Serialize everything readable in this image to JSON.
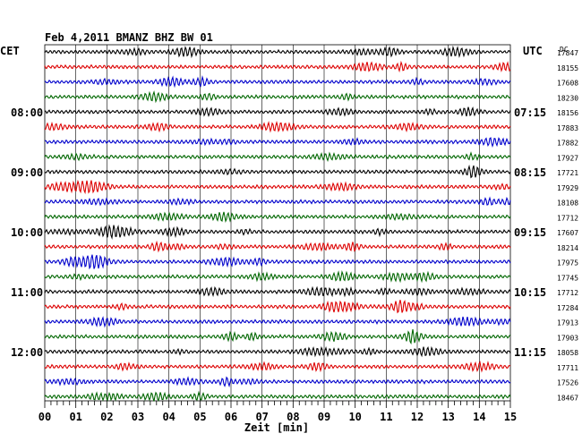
{
  "chart_data": {
    "type": "line",
    "title": "Feb 4,2011   BMANZ BHZ BW 01",
    "xlabel": "Zeit [min]",
    "left_axis_label": "CET",
    "right_axis_label": "UTC",
    "counts_label": "DC",
    "xlim": [
      0,
      15
    ],
    "x_ticks": [
      "00",
      "01",
      "02",
      "03",
      "04",
      "05",
      "06",
      "07",
      "08",
      "09",
      "10",
      "11",
      "12",
      "13",
      "14",
      "15"
    ],
    "trace_colors": [
      "#000000",
      "#dd0000",
      "#0000cc",
      "#006600"
    ],
    "left_time_labels": [
      {
        "trace": 4,
        "label": "08:00"
      },
      {
        "trace": 8,
        "label": "09:00"
      },
      {
        "trace": 12,
        "label": "10:00"
      },
      {
        "trace": 16,
        "label": "11:00"
      },
      {
        "trace": 20,
        "label": "12:00"
      }
    ],
    "right_time_labels": [
      {
        "trace": 4,
        "label": "07:15"
      },
      {
        "trace": 8,
        "label": "08:15"
      },
      {
        "trace": 12,
        "label": "09:15"
      },
      {
        "trace": 16,
        "label": "10:15"
      },
      {
        "trace": 20,
        "label": "11:15"
      }
    ],
    "series": [
      {
        "dc": "17847"
      },
      {
        "dc": "18155"
      },
      {
        "dc": "17608"
      },
      {
        "dc": "18230"
      },
      {
        "dc": "18156"
      },
      {
        "dc": "17883"
      },
      {
        "dc": "17882"
      },
      {
        "dc": "17927"
      },
      {
        "dc": "17721"
      },
      {
        "dc": "17929"
      },
      {
        "dc": "18108"
      },
      {
        "dc": "17712"
      },
      {
        "dc": "17607"
      },
      {
        "dc": "18214"
      },
      {
        "dc": "17975"
      },
      {
        "dc": "17745"
      },
      {
        "dc": "17712"
      },
      {
        "dc": "17284"
      },
      {
        "dc": "17913"
      },
      {
        "dc": "17903"
      },
      {
        "dc": "18058"
      },
      {
        "dc": "17711"
      },
      {
        "dc": "17526"
      },
      {
        "dc": "18467"
      }
    ]
  }
}
